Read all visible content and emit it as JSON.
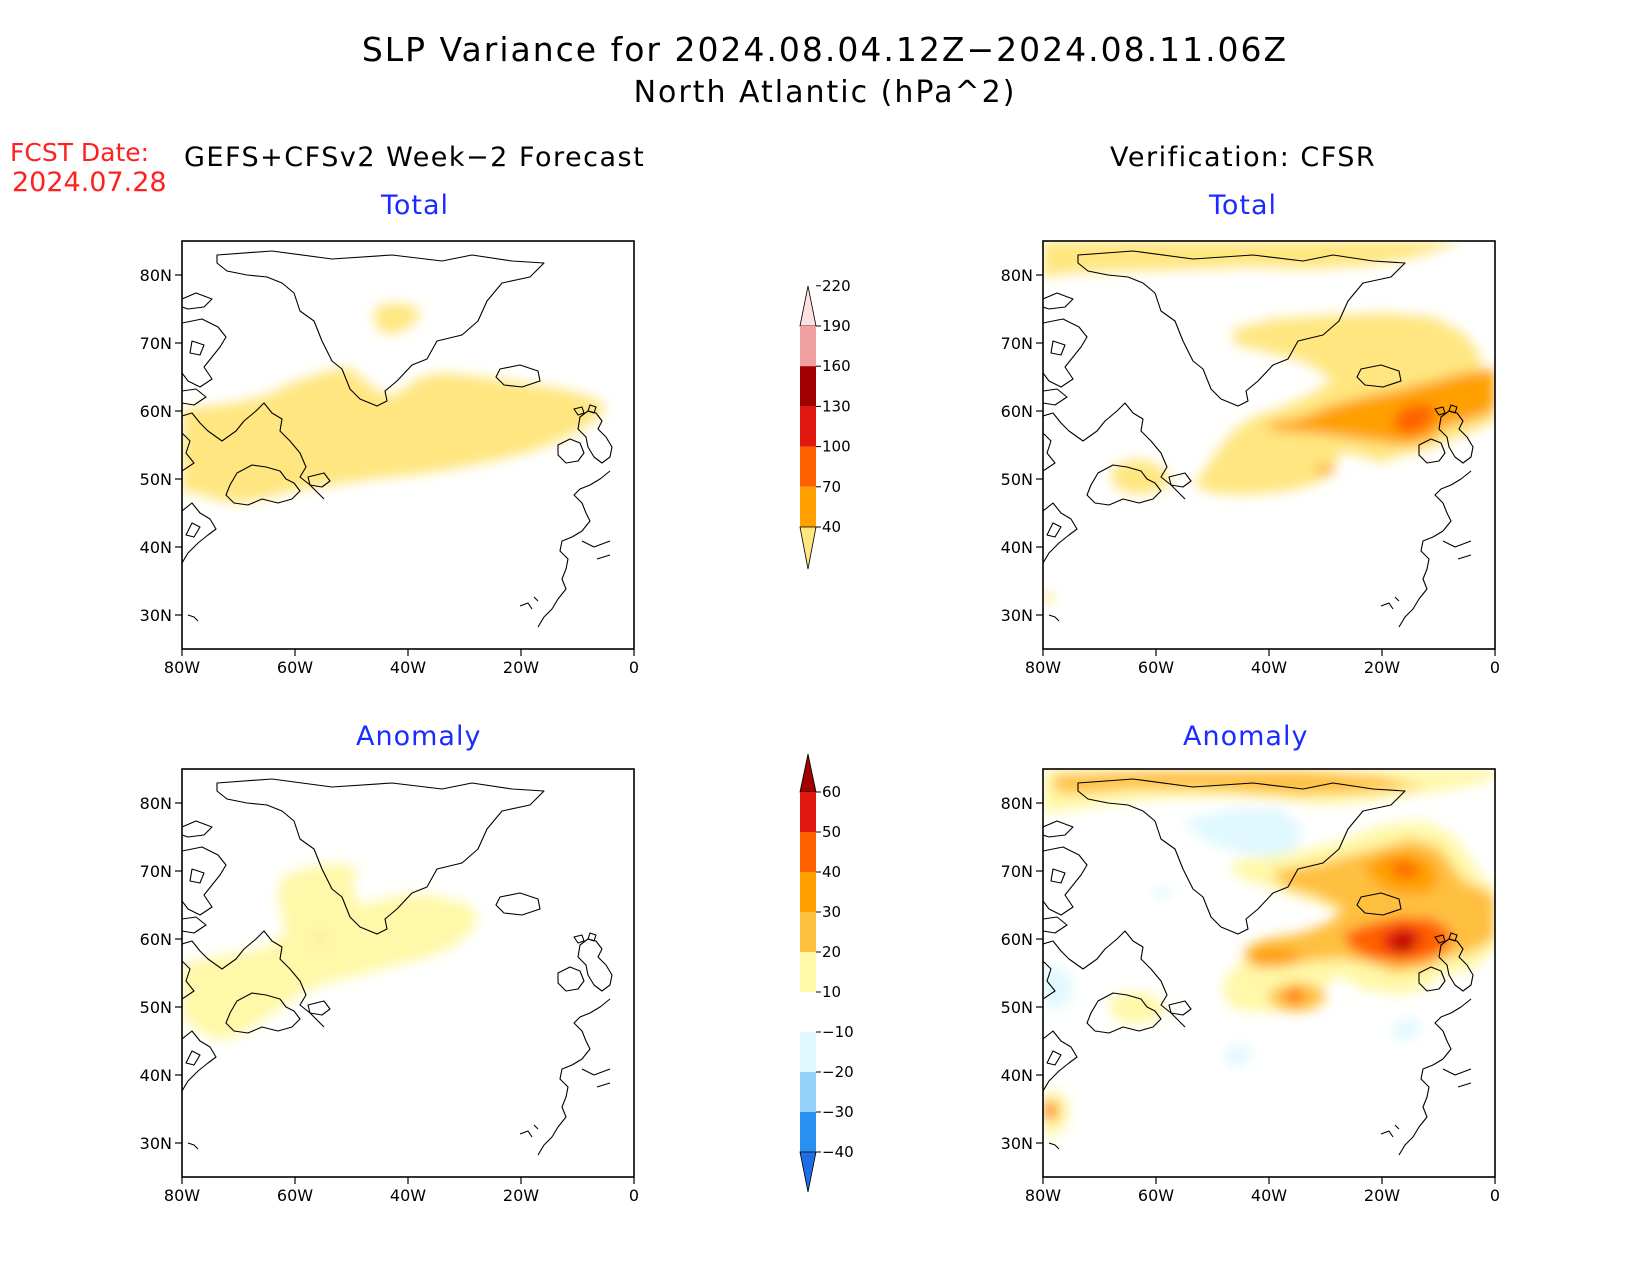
{
  "title": {
    "line1": "SLP Variance for 2024.08.04.12Z−2024.08.11.06Z",
    "line2": "North Atlantic (hPa^2)"
  },
  "forecast_date": {
    "label": "FCST Date:",
    "value": "2024.07.28"
  },
  "columns": {
    "left": "GEFS+CFSv2 Week−2 Forecast",
    "right": "Verification: CFSR"
  },
  "panels": [
    {
      "id": "fcst-total",
      "subtitle": "Total"
    },
    {
      "id": "verif-total",
      "subtitle": "Total"
    },
    {
      "id": "fcst-anomaly",
      "subtitle": "Anomaly"
    },
    {
      "id": "verif-anomaly",
      "subtitle": "Anomaly"
    }
  ],
  "axes": {
    "lat_labels": [
      "80N",
      "70N",
      "60N",
      "50N",
      "40N",
      "30N"
    ],
    "lat_values": [
      80,
      70,
      60,
      50,
      40,
      30
    ],
    "lon_labels": [
      "80W",
      "60W",
      "40W",
      "20W",
      "0"
    ],
    "lon_values": [
      -80,
      -60,
      -40,
      -20,
      0
    ],
    "lat_range": [
      25,
      85
    ],
    "lon_range": [
      -80,
      0
    ]
  },
  "colorbar_total": {
    "labels": [
      "40",
      "70",
      "100",
      "130",
      "160",
      "190",
      "220"
    ],
    "colors": [
      "#ffe680",
      "#ffa000",
      "#ff6000",
      "#e01810",
      "#a00000",
      "#f0a0a0",
      "#ffe0e0"
    ]
  },
  "colorbar_anomaly": {
    "labels": [
      "−40",
      "−30",
      "−20",
      "−10",
      "10",
      "20",
      "30",
      "40",
      "50",
      "60"
    ],
    "colors": [
      "#1e6ee6",
      "#2890f0",
      "#96d2fa",
      "#e0f8ff",
      "#ffffff",
      "#fff8a8",
      "#ffc040",
      "#ffa000",
      "#ff6000",
      "#e01810",
      "#a00000"
    ]
  }
}
